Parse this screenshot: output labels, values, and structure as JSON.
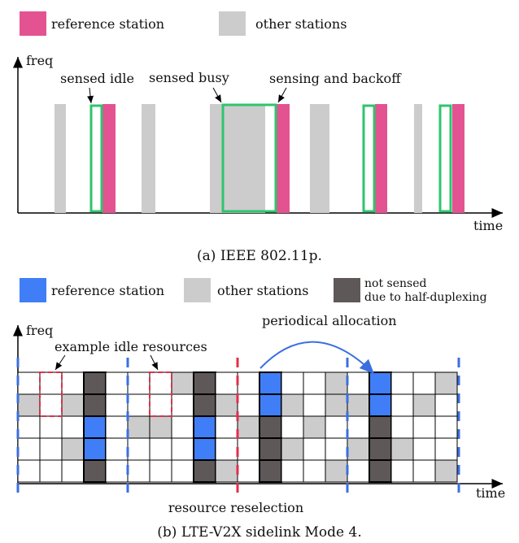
{
  "panel_a": {
    "legend": [
      "reference station",
      "other stations"
    ],
    "y_label": "freq",
    "x_label": "time",
    "annotations": [
      "sensed idle",
      "sensed busy",
      "sensing and backoff"
    ],
    "caption": "(a) IEEE 802.11p."
  },
  "panel_b": {
    "legend": [
      "reference station",
      "other stations",
      "not sensed",
      "due to half-duplexing"
    ],
    "y_label": "freq",
    "x_label": "time",
    "annotations": [
      "example idle resources",
      "periodical allocation",
      "resource reselection"
    ],
    "caption": "(b) LTE-V2X sidelink Mode 4."
  }
}
